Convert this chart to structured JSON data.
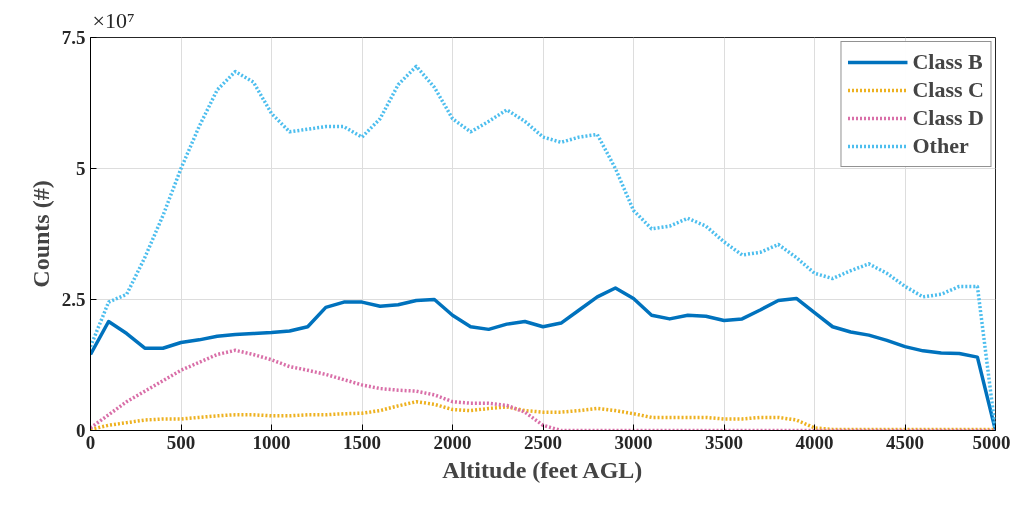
{
  "chart_data": {
    "type": "line",
    "xlabel": "Altitude (feet AGL)",
    "ylabel": "Counts (#)",
    "annotations": [
      "×10⁷"
    ],
    "x": [
      0,
      100,
      200,
      300,
      400,
      500,
      600,
      700,
      800,
      900,
      1000,
      1100,
      1200,
      1300,
      1400,
      1500,
      1600,
      1700,
      1800,
      1900,
      2000,
      2100,
      2200,
      2300,
      2400,
      2500,
      2600,
      2700,
      2800,
      2900,
      3000,
      3100,
      3200,
      3300,
      3400,
      3500,
      3600,
      3700,
      3800,
      3900,
      4000,
      4100,
      4200,
      4300,
      4400,
      4500,
      4600,
      4700,
      4800,
      4900,
      5000
    ],
    "series": [
      {
        "name": "Class B",
        "color": "#0072bd",
        "line_style": "solid",
        "values": [
          1.45,
          2.08,
          1.85,
          1.57,
          1.57,
          1.68,
          1.73,
          1.8,
          1.83,
          1.85,
          1.87,
          1.9,
          1.98,
          2.35,
          2.45,
          2.45,
          2.37,
          2.4,
          2.48,
          2.5,
          2.2,
          1.98,
          1.93,
          2.03,
          2.08,
          1.98,
          2.05,
          2.3,
          2.55,
          2.72,
          2.52,
          2.2,
          2.13,
          2.2,
          2.18,
          2.1,
          2.13,
          2.3,
          2.48,
          2.52,
          2.25,
          1.98,
          1.88,
          1.82,
          1.72,
          1.6,
          1.52,
          1.48,
          1.47,
          1.4,
          0
        ]
      },
      {
        "name": "Class C",
        "color": "#edb120",
        "line_style": "dotted",
        "values": [
          0.02,
          0.1,
          0.15,
          0.2,
          0.22,
          0.22,
          0.25,
          0.28,
          0.3,
          0.3,
          0.28,
          0.28,
          0.3,
          0.3,
          0.32,
          0.33,
          0.38,
          0.47,
          0.55,
          0.5,
          0.4,
          0.38,
          0.42,
          0.45,
          0.38,
          0.35,
          0.35,
          0.38,
          0.42,
          0.38,
          0.32,
          0.25,
          0.25,
          0.25,
          0.25,
          0.22,
          0.22,
          0.25,
          0.25,
          0.2,
          0.05,
          0.02,
          0.02,
          0.02,
          0.02,
          0.02,
          0.02,
          0.02,
          0.02,
          0.02,
          0.02
        ]
      },
      {
        "name": "Class D",
        "color": "#d96fa8",
        "line_style": "dotted",
        "values": [
          0.05,
          0.3,
          0.55,
          0.75,
          0.95,
          1.15,
          1.3,
          1.45,
          1.53,
          1.45,
          1.35,
          1.22,
          1.15,
          1.07,
          0.97,
          0.87,
          0.8,
          0.77,
          0.75,
          0.68,
          0.55,
          0.52,
          0.52,
          0.48,
          0.35,
          0.1,
          0,
          0,
          0,
          0,
          0,
          0,
          0,
          0,
          0,
          0,
          0,
          0,
          0,
          0,
          0,
          0,
          0,
          0,
          0,
          0,
          0,
          0,
          0,
          0,
          0
        ]
      },
      {
        "name": "Other",
        "color": "#4dbeee",
        "line_style": "dotted",
        "values": [
          1.6,
          2.45,
          2.6,
          3.3,
          4.1,
          5.0,
          5.8,
          6.5,
          6.85,
          6.65,
          6.05,
          5.7,
          5.75,
          5.8,
          5.8,
          5.6,
          5.95,
          6.6,
          6.95,
          6.55,
          5.95,
          5.7,
          5.9,
          6.12,
          5.9,
          5.6,
          5.5,
          5.6,
          5.65,
          5.0,
          4.2,
          3.85,
          3.9,
          4.05,
          3.9,
          3.6,
          3.35,
          3.4,
          3.55,
          3.3,
          3.0,
          2.9,
          3.05,
          3.18,
          3.0,
          2.75,
          2.55,
          2.6,
          2.75,
          2.75,
          0
        ]
      }
    ],
    "xlim": [
      0,
      5000
    ],
    "xticks": [
      0,
      500,
      1000,
      1500,
      2000,
      2500,
      3000,
      3500,
      4000,
      4500,
      5000
    ],
    "ylim": [
      0,
      7.5
    ],
    "yticks": [
      0,
      2.5,
      5,
      7.5
    ],
    "grid": true,
    "legend": "top right",
    "marker": "none"
  }
}
